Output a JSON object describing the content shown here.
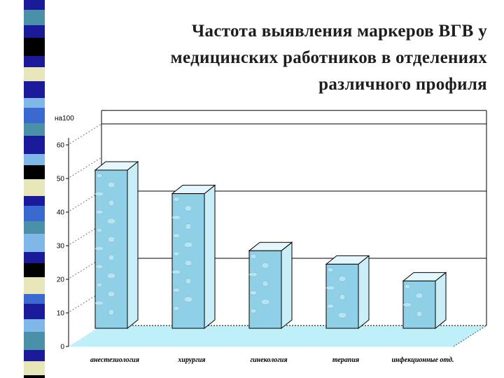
{
  "title_lines": [
    "Частота выявления маркеров ВГВ у",
    "медицинских работников в отделениях",
    "различного профиля"
  ],
  "colors": {
    "bar_front": "#8fd0e6",
    "bar_side": "#c9eef8",
    "bar_top": "#e3f7fc",
    "floor": "#bfeff8",
    "stripe": [
      "#1a1a9a",
      "#4a90a8",
      "#000000",
      "#e6e6b8",
      "#7fb8e8",
      "#3a6ad0"
    ]
  },
  "chart_data": {
    "type": "bar",
    "title": "Частота выявления маркеров ВГВ у медицинских работников в отделениях различного профиля",
    "ylabel": "на100",
    "xlabel": "",
    "categories": [
      "анестезиология",
      "хирургия",
      "гинекология",
      "терапия",
      "инфекционные отд."
    ],
    "values": [
      55,
      48,
      31,
      27,
      22
    ],
    "ylim": [
      0,
      60
    ],
    "yticks": [
      0,
      10,
      20,
      30,
      40,
      50,
      60
    ],
    "grid": true,
    "three_d": true
  }
}
